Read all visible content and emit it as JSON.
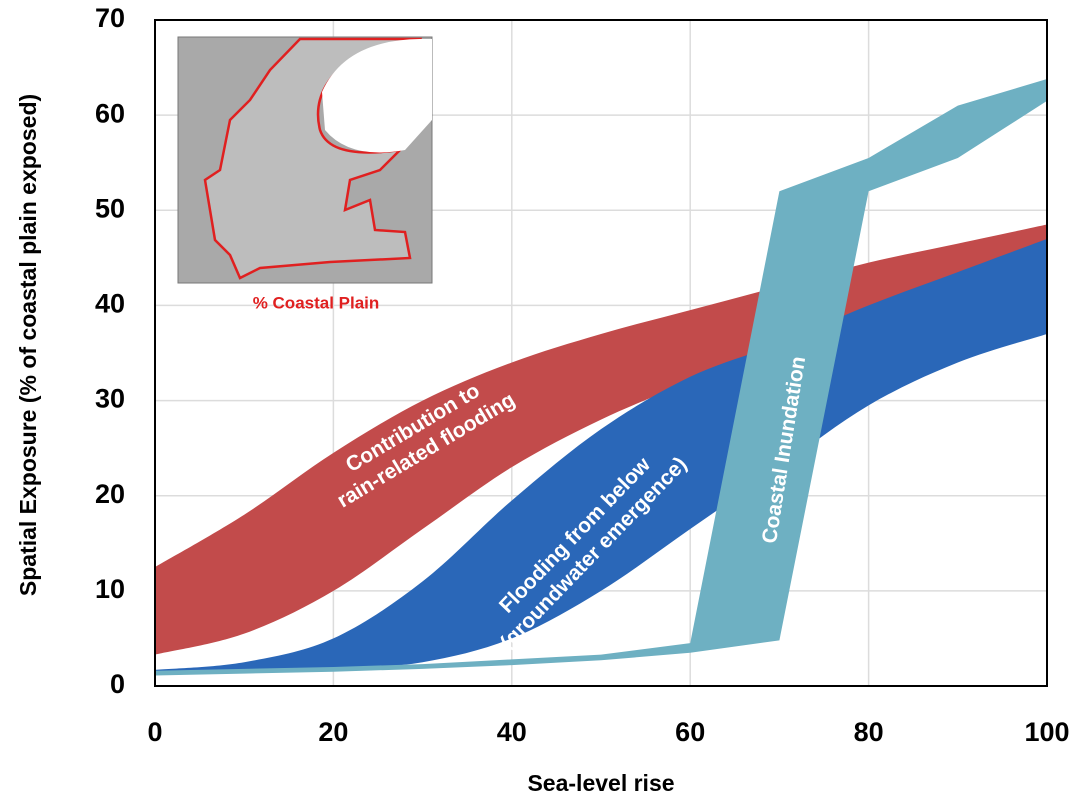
{
  "chart_data": {
    "type": "band",
    "x_label": "Sea-level rise",
    "y_label": "Spatial Exposure (% of coastal plain exposed)",
    "inset_label": "% Coastal Plain",
    "x": [
      0,
      10,
      20,
      30,
      40,
      50,
      60,
      70,
      80,
      90,
      100
    ],
    "xlim": [
      0,
      100
    ],
    "xticks": [
      0,
      20,
      40,
      60,
      80,
      100
    ],
    "ylim": [
      0,
      70
    ],
    "yticks": [
      0,
      10,
      20,
      30,
      40,
      50,
      60,
      70
    ],
    "grid": true,
    "series": [
      {
        "label": [
          "Contribution to",
          "rain-related flooding"
        ],
        "color": "#c24b4b",
        "smooth": true,
        "upper": [
          12.5,
          18,
          24.5,
          30,
          34,
          37,
          39.5,
          42,
          44.5,
          46.5,
          48.5
        ],
        "lower": [
          3.3,
          5.5,
          10,
          16.5,
          23,
          28,
          32,
          36,
          39.5,
          43,
          46.5
        ]
      },
      {
        "label": [
          "Flooding from below",
          "(groundwater emergence)"
        ],
        "color": "#2a67b8",
        "smooth": true,
        "upper": [
          1.7,
          2.5,
          5,
          11,
          19.5,
          27,
          32.5,
          36,
          40,
          43.5,
          47
        ],
        "lower": [
          1.3,
          1.5,
          1.8,
          2.5,
          5,
          10,
          16.5,
          23,
          29.5,
          34,
          37
        ]
      },
      {
        "label": [
          "Coastal Inundation"
        ],
        "color": "#6eb0c2",
        "smooth": false,
        "upper": [
          1.6,
          1.8,
          2,
          2.3,
          2.8,
          3.3,
          4.5,
          52,
          55.5,
          61,
          63.8
        ],
        "lower": [
          1.1,
          1.3,
          1.5,
          1.8,
          2.2,
          2.7,
          3.5,
          4.8,
          52,
          55.5,
          61.5
        ]
      }
    ]
  }
}
